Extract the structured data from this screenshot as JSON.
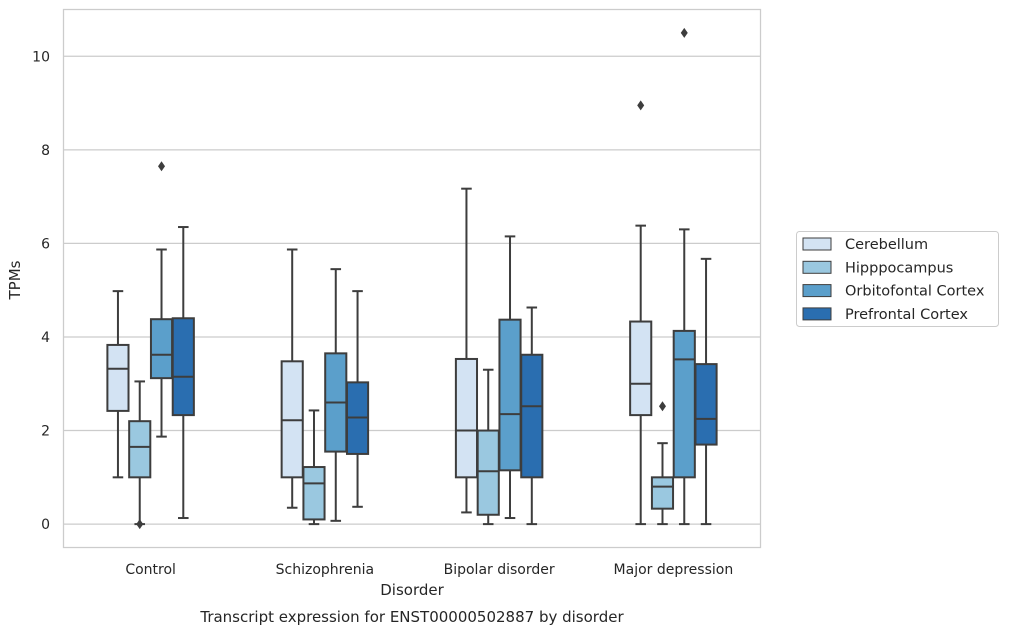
{
  "chart_data": {
    "type": "box",
    "title": "",
    "caption": "Transcript expression for ENST00000502887 by disorder",
    "xlabel": "Disorder",
    "ylabel": "TPMs",
    "ylim": [
      -0.5,
      11.0
    ],
    "yticks": [
      0,
      2,
      4,
      6,
      8,
      10
    ],
    "grid": "horizontal",
    "legend_placement": "outside-right",
    "categories": [
      "Control",
      "Schizophrenia",
      "Bipolar disorder",
      "Major depression"
    ],
    "series": [
      {
        "name": "Cerebellum",
        "color": "#d3e3f3",
        "boxes": [
          {
            "min": 1.0,
            "q1": 2.42,
            "median": 3.32,
            "q3": 3.83,
            "max": 4.98,
            "outliers": []
          },
          {
            "min": 0.35,
            "q1": 1.0,
            "median": 2.22,
            "q3": 3.48,
            "max": 5.87,
            "outliers": []
          },
          {
            "min": 0.25,
            "q1": 1.0,
            "median": 2.0,
            "q3": 3.53,
            "max": 7.17,
            "outliers": []
          },
          {
            "min": 0.0,
            "q1": 2.33,
            "median": 3.0,
            "q3": 4.33,
            "max": 6.38,
            "outliers": [
              8.95
            ]
          }
        ]
      },
      {
        "name": "Hipppocampus",
        "color": "#9ac8e0",
        "boxes": [
          {
            "min": 0.0,
            "q1": 1.0,
            "median": 1.65,
            "q3": 2.2,
            "max": 3.05,
            "outliers": [
              0.0
            ]
          },
          {
            "min": 0.0,
            "q1": 0.1,
            "median": 0.87,
            "q3": 1.22,
            "max": 2.43,
            "outliers": []
          },
          {
            "min": 0.0,
            "q1": 0.2,
            "median": 1.13,
            "q3": 2.0,
            "max": 3.3,
            "outliers": []
          },
          {
            "min": 0.0,
            "q1": 0.33,
            "median": 0.8,
            "q3": 1.0,
            "max": 1.73,
            "outliers": [
              2.52
            ]
          }
        ]
      },
      {
        "name": "Orbitofontal Cortex",
        "color": "#5b9fcb",
        "boxes": [
          {
            "min": 1.87,
            "q1": 3.12,
            "median": 3.62,
            "q3": 4.38,
            "max": 5.87,
            "outliers": [
              7.65
            ]
          },
          {
            "min": 0.07,
            "q1": 1.55,
            "median": 2.6,
            "q3": 3.65,
            "max": 5.45,
            "outliers": []
          },
          {
            "min": 0.13,
            "q1": 1.15,
            "median": 2.35,
            "q3": 4.37,
            "max": 6.15,
            "outliers": []
          },
          {
            "min": 0.0,
            "q1": 1.0,
            "median": 3.52,
            "q3": 4.13,
            "max": 6.3,
            "outliers": [
              10.5
            ]
          }
        ]
      },
      {
        "name": "Prefrontal Cortex",
        "color": "#2a6eb0",
        "boxes": [
          {
            "min": 0.13,
            "q1": 2.33,
            "median": 3.15,
            "q3": 4.4,
            "max": 6.35,
            "outliers": []
          },
          {
            "min": 0.37,
            "q1": 1.5,
            "median": 2.28,
            "q3": 3.03,
            "max": 4.98,
            "outliers": []
          },
          {
            "min": 0.0,
            "q1": 1.0,
            "median": 2.52,
            "q3": 3.62,
            "max": 4.63,
            "outliers": []
          },
          {
            "min": 0.0,
            "q1": 1.7,
            "median": 2.25,
            "q3": 3.42,
            "max": 5.67,
            "outliers": []
          }
        ]
      }
    ]
  }
}
